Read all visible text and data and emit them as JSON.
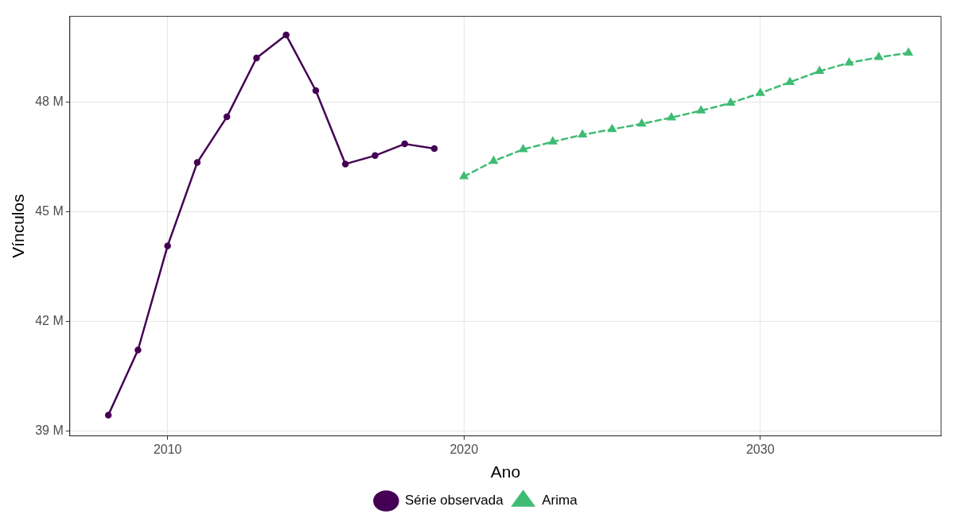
{
  "chart_data": {
    "type": "line",
    "xlabel": "Ano",
    "ylabel": "Vínculos",
    "xlim": [
      2006.7,
      2036.1
    ],
    "xticks": [
      2010,
      2020,
      2030
    ],
    "ylim": [
      38.87,
      50.35
    ],
    "yticks": [
      {
        "value": 39,
        "label": "39 M"
      },
      {
        "value": 42,
        "label": "42 M"
      },
      {
        "value": 45,
        "label": "45 M"
      },
      {
        "value": 48,
        "label": "48 M"
      }
    ],
    "grid": true,
    "legend": "bottom",
    "series": [
      {
        "name": "Série observada",
        "color": "#440154",
        "marker": "circle",
        "line_style": "solid",
        "x": [
          2008,
          2009,
          2010,
          2011,
          2012,
          2013,
          2014,
          2015,
          2016,
          2017,
          2018,
          2019
        ],
        "values": [
          39.44,
          41.22,
          44.07,
          46.35,
          47.6,
          49.21,
          49.84,
          48.32,
          46.31,
          46.54,
          46.86,
          46.73
        ]
      },
      {
        "name": "Arima",
        "color": "#3fbc73",
        "marker": "triangle",
        "line_style": "dashed",
        "x": [
          2020,
          2021,
          2022,
          2023,
          2024,
          2025,
          2026,
          2027,
          2028,
          2029,
          2030,
          2031,
          2032,
          2033,
          2034,
          2035
        ],
        "values": [
          45.97,
          46.39,
          46.71,
          46.92,
          47.11,
          47.26,
          47.41,
          47.58,
          47.77,
          47.98,
          48.25,
          48.55,
          48.85,
          49.08,
          49.23,
          49.35
        ]
      }
    ]
  }
}
